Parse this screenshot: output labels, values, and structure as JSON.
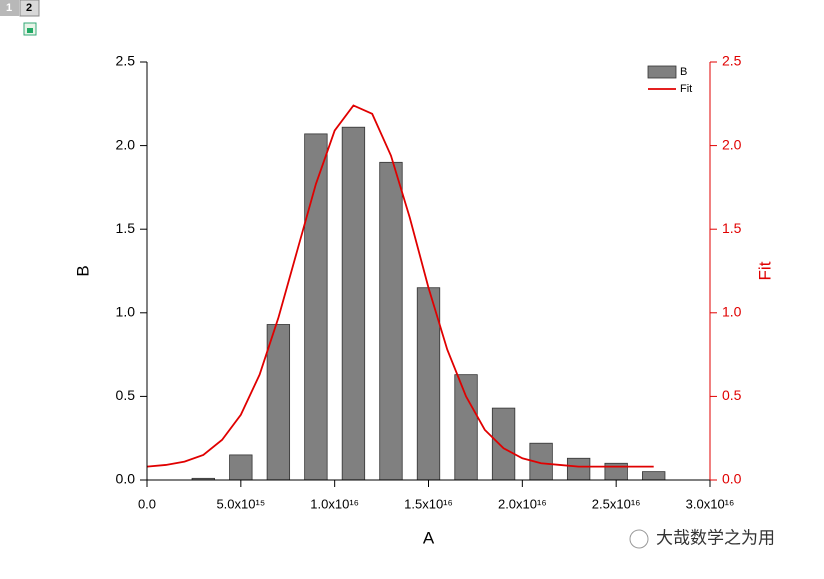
{
  "layer_tabs": [
    "1",
    "2"
  ],
  "watermark": "大哉数学之为用",
  "chart_data": {
    "type": "bar",
    "xlabel": "A",
    "ylabel": "B",
    "y2label": "Fit",
    "xlim": [
      0,
      30000000000000000
    ],
    "xticks": [
      {
        "value": 0,
        "label": "0.0"
      },
      {
        "value": 5000000000000000,
        "label": "5.0x10¹⁵"
      },
      {
        "value": 10000000000000000,
        "label": "1.0x10¹⁶"
      },
      {
        "value": 15000000000000000,
        "label": "1.5x10¹⁶"
      },
      {
        "value": 20000000000000000,
        "label": "2.0x10¹⁶"
      },
      {
        "value": 25000000000000000,
        "label": "2.5x10¹⁶"
      },
      {
        "value": 30000000000000000,
        "label": "3.0x10¹⁶"
      }
    ],
    "ylim": [
      0,
      2.5
    ],
    "yticks": [
      {
        "value": 0,
        "label": "0.0"
      },
      0.5,
      {
        "value": 1,
        "label": "1.0"
      },
      1.5,
      {
        "value": 2,
        "label": "2.0"
      },
      2.5
    ],
    "y2lim": [
      0,
      2.5
    ],
    "y2ticks": [
      {
        "value": 0,
        "label": "0.0"
      },
      0.5,
      {
        "value": 1,
        "label": "1.0"
      },
      1.5,
      {
        "value": 2,
        "label": "2.0"
      },
      2.5
    ],
    "y2color": "#e00000",
    "legend": "top-right",
    "series": [
      {
        "name": "B",
        "type": "bar",
        "color": "#808080",
        "x": [
          3000000000000000,
          5000000000000000,
          7000000000000000,
          9000000000000000,
          11000000000000000,
          13000000000000000,
          15000000000000000,
          17000000000000000,
          19000000000000000,
          21000000000000000,
          23000000000000000,
          25000000000000000,
          27000000000000000
        ],
        "values": [
          0.01,
          0.15,
          0.93,
          2.07,
          2.11,
          1.9,
          1.15,
          0.63,
          0.43,
          0.22,
          0.13,
          0.1,
          0.05
        ]
      },
      {
        "name": "Fit",
        "type": "line",
        "color": "#e00000",
        "axis": "y2",
        "x": [
          0,
          1000000000000000,
          2000000000000000,
          3000000000000000,
          4000000000000000,
          5000000000000000,
          6000000000000000,
          7000000000000000,
          8000000000000000,
          9000000000000000,
          10000000000000000,
          11000000000000000,
          12000000000000000,
          13000000000000000,
          14000000000000000,
          15000000000000000,
          16000000000000000,
          17000000000000000,
          18000000000000000,
          19000000000000000,
          20000000000000000,
          21000000000000000,
          22000000000000000,
          23000000000000000,
          24000000000000000,
          25000000000000000,
          26000000000000000,
          27000000000000000
        ],
        "values": [
          0.08,
          0.09,
          0.11,
          0.15,
          0.24,
          0.39,
          0.63,
          0.97,
          1.37,
          1.77,
          2.09,
          2.24,
          2.19,
          1.94,
          1.57,
          1.15,
          0.78,
          0.5,
          0.3,
          0.19,
          0.13,
          0.1,
          0.09,
          0.08,
          0.08,
          0.08,
          0.08,
          0.08
        ]
      }
    ]
  }
}
